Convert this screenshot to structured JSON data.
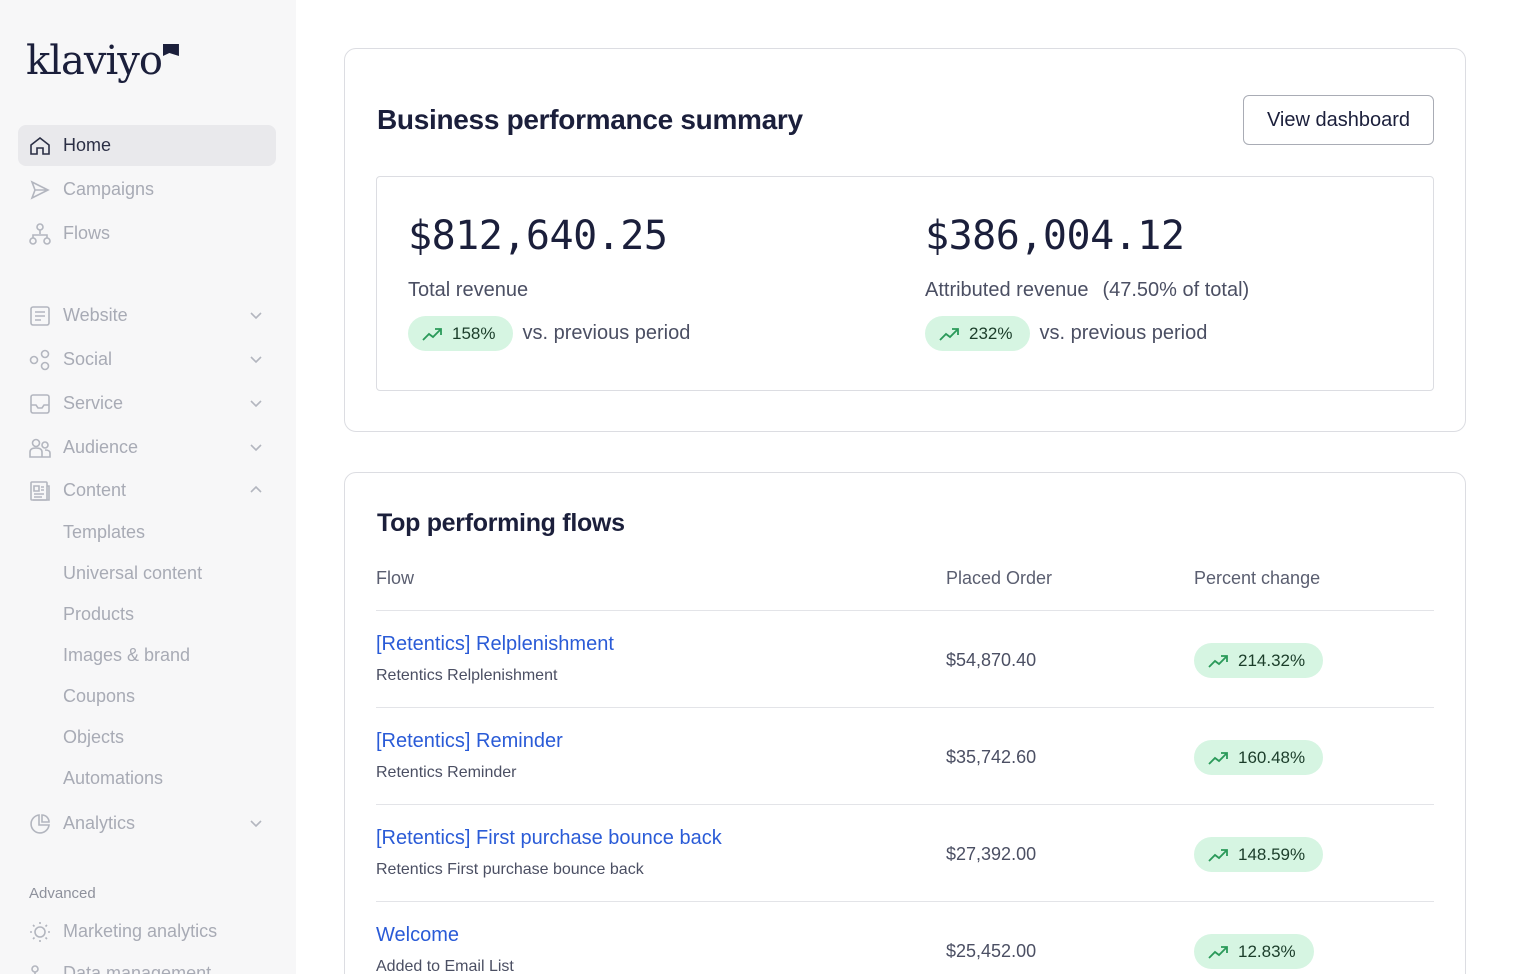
{
  "brand": {
    "logo_text": "klaviyo"
  },
  "sidebar": {
    "items": [
      {
        "label": "Home",
        "icon": "home-icon",
        "active": true
      },
      {
        "label": "Campaigns",
        "icon": "send-icon"
      },
      {
        "label": "Flows",
        "icon": "flows-icon"
      },
      {
        "label": "Website",
        "icon": "website-icon",
        "chevron": "down"
      },
      {
        "label": "Social",
        "icon": "social-icon",
        "chevron": "down"
      },
      {
        "label": "Service",
        "icon": "inbox-icon",
        "chevron": "down"
      },
      {
        "label": "Audience",
        "icon": "audience-icon",
        "chevron": "down"
      },
      {
        "label": "Content",
        "icon": "content-icon",
        "chevron": "up"
      },
      {
        "label": "Analytics",
        "icon": "analytics-icon",
        "chevron": "down"
      }
    ],
    "content_sub": [
      "Templates",
      "Universal content",
      "Products",
      "Images & brand",
      "Coupons",
      "Objects",
      "Automations"
    ],
    "advanced_label": "Advanced",
    "advanced_items": [
      {
        "label": "Marketing analytics",
        "icon": "lightbulb-icon"
      },
      {
        "label": "Data management",
        "icon": "data-icon"
      }
    ]
  },
  "summary": {
    "title": "Business performance summary",
    "button_label": "View dashboard",
    "total": {
      "value": "$812,640.25",
      "label": "Total revenue",
      "change": "158%",
      "vs": "vs. previous period"
    },
    "attributed": {
      "value": "$386,004.12",
      "label": "Attributed revenue",
      "share": "(47.50% of total)",
      "change": "232%",
      "vs": "vs. previous period"
    }
  },
  "flows": {
    "title": "Top performing flows",
    "columns": [
      "Flow",
      "Placed Order",
      "Percent change"
    ],
    "rows": [
      {
        "name": "[Retentics] Relplenishment",
        "sub": "Retentics Relplenishment",
        "value": "$54,870.40",
        "change": "214.32%"
      },
      {
        "name": "[Retentics] Reminder",
        "sub": "Retentics Reminder",
        "value": "$35,742.60",
        "change": "160.48%"
      },
      {
        "name": "[Retentics] First purchase bounce back",
        "sub": "Retentics First purchase bounce back",
        "value": "$27,392.00",
        "change": "148.59%"
      },
      {
        "name": "Welcome",
        "sub": "Added to Email List",
        "value": "$25,452.00",
        "change": "12.83%"
      }
    ]
  },
  "colors": {
    "link": "#2a5bd7",
    "pill_bg": "#d6f5e2",
    "pill_icon": "#2b9a5a",
    "sidebar_bg": "#f7f7f8"
  }
}
